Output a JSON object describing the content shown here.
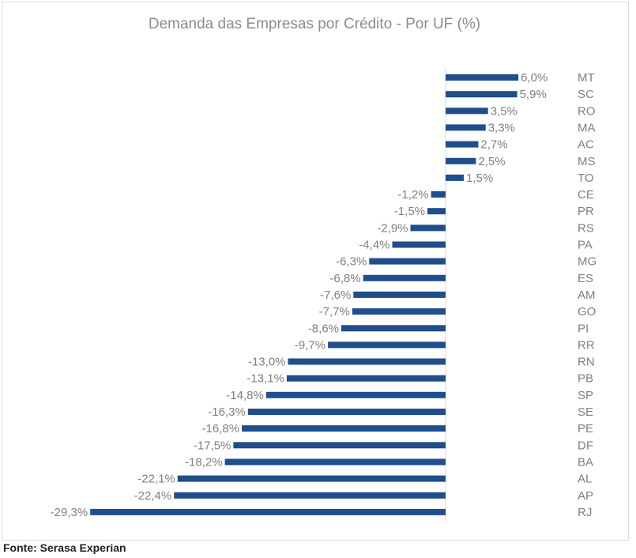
{
  "chart_data": {
    "type": "bar",
    "orientation": "horizontal",
    "title": "Demanda das Empresas por Crédito - Por UF (%)",
    "categories": [
      "MT",
      "SC",
      "RO",
      "MA",
      "AC",
      "MS",
      "TO",
      "CE",
      "PR",
      "RS",
      "PA",
      "MG",
      "ES",
      "AM",
      "GO",
      "PI",
      "RR",
      "RN",
      "PB",
      "SP",
      "SE",
      "PE",
      "DF",
      "BA",
      "AL",
      "AP",
      "RJ"
    ],
    "values": [
      6.0,
      5.9,
      3.5,
      3.3,
      2.7,
      2.5,
      1.5,
      -1.2,
      -1.5,
      -2.9,
      -4.4,
      -6.3,
      -6.8,
      -7.6,
      -7.7,
      -8.6,
      -9.7,
      -13.0,
      -13.1,
      -14.8,
      -16.3,
      -16.8,
      -17.5,
      -18.2,
      -22.1,
      -22.4,
      -29.3
    ],
    "value_labels": [
      "6,0%",
      "5,9%",
      "3,5%",
      "3,3%",
      "2,7%",
      "2,5%",
      "1,5%",
      "-1,2%",
      "-1,5%",
      "-2,9%",
      "-4,4%",
      "-6,3%",
      "-6,8%",
      "-7,6%",
      "-7,7%",
      "-8,6%",
      "-9,7%",
      "-13,0%",
      "-13,1%",
      "-14,8%",
      "-16,3%",
      "-16,8%",
      "-17,5%",
      "-18,2%",
      "-22,1%",
      "-22,4%",
      "-29,3%"
    ],
    "bar_color": "#1f4e8c",
    "label_color": "#7f7f7f",
    "grid": false,
    "legend": "none"
  },
  "footer": {
    "source": "Fonte: Serasa Experian"
  }
}
